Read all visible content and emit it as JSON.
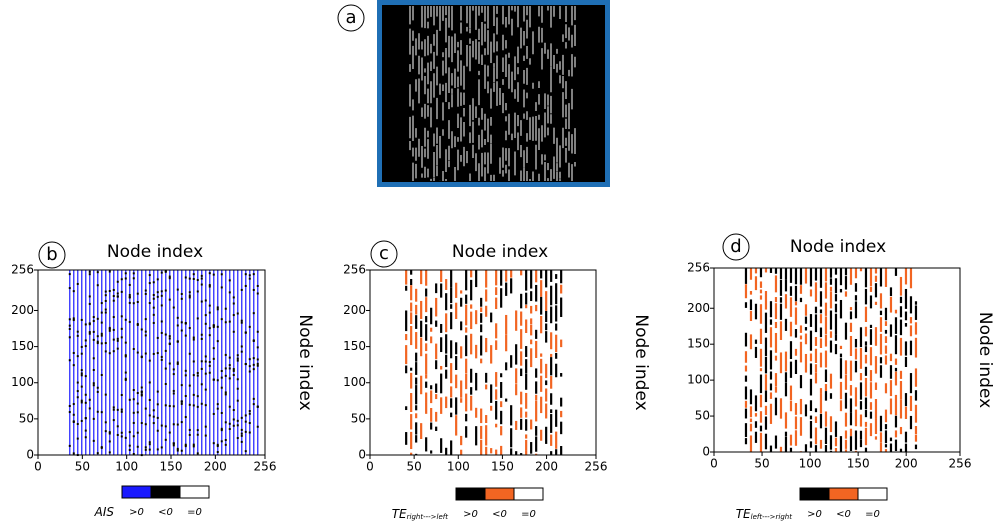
{
  "panel_a": {
    "label": "a"
  },
  "chart_data": [
    {
      "type": "heatmap",
      "panel": "b",
      "xlabel": "Node index",
      "ylabel": "Node index",
      "xlim": [
        0,
        256
      ],
      "xticks": [
        0,
        50,
        100,
        150,
        200,
        256
      ],
      "ylim": [
        0,
        256
      ],
      "yticks": [
        0,
        50,
        100,
        150,
        200,
        256
      ],
      "legend": {
        "title": "AIS",
        "entries": [
          {
            "name": ">0",
            "color": "#1a1aff"
          },
          {
            "name": "<0",
            "color": "#000000"
          },
          {
            "name": "=0",
            "color": "#ffffff"
          }
        ]
      }
    },
    {
      "type": "heatmap",
      "panel": "c",
      "xlabel": "Node index",
      "ylabel": "Node index",
      "xlim": [
        0,
        256
      ],
      "xticks": [
        0,
        50,
        100,
        150,
        200,
        256
      ],
      "ylim": [
        0,
        256
      ],
      "yticks": [
        0,
        50,
        100,
        150,
        200,
        256
      ],
      "legend": {
        "title": "TE",
        "subscript": "right--->left",
        "entries": [
          {
            "name": ">0",
            "color": "#000000"
          },
          {
            "name": "<0",
            "color": "#f26522"
          },
          {
            "name": "=0",
            "color": "#ffffff"
          }
        ]
      }
    },
    {
      "type": "heatmap",
      "panel": "d",
      "xlabel": "Node index",
      "ylabel": "Node index",
      "xlim": [
        0,
        256
      ],
      "xticks": [
        0,
        50,
        100,
        150,
        200,
        256
      ],
      "ylim": [
        0,
        256
      ],
      "yticks": [
        0,
        50,
        100,
        150,
        200,
        256
      ],
      "legend": {
        "title": "TE",
        "subscript": "left--->right",
        "entries": [
          {
            "name": ">0",
            "color": "#000000"
          },
          {
            "name": "<0",
            "color": "#f26522"
          },
          {
            "name": "=0",
            "color": "#ffffff"
          }
        ]
      }
    }
  ]
}
